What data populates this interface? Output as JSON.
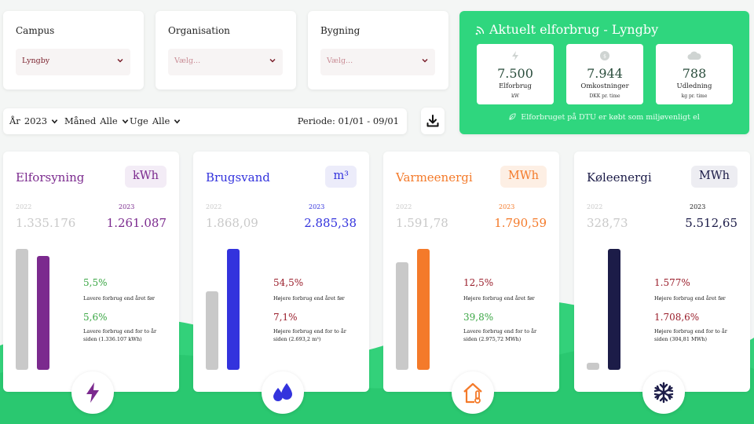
{
  "filters": [
    {
      "label": "Campus",
      "value": "Lyngby",
      "placeholder": ""
    },
    {
      "label": "Organisation",
      "value": "",
      "placeholder": "Vælg..."
    },
    {
      "label": "Bygning",
      "value": "",
      "placeholder": "Vælg..."
    }
  ],
  "period": {
    "year_label": "År",
    "year_value": "2023",
    "month_label": "Måned",
    "month_value": "Alle",
    "week_label": "Uge",
    "week_value": "Alle",
    "range_text": "Periode: 01/01 - 09/01"
  },
  "download": {
    "icon": "download-icon"
  },
  "live": {
    "title": "Aktuelt elforbrug - Lyngby",
    "icon": "wifi-signal-icon",
    "cards": [
      {
        "icon": "lightning-icon",
        "value": "7.500",
        "label": "Elforbrug",
        "unit": "kW"
      },
      {
        "icon": "coins-icon",
        "value": "7.944",
        "label": "Omkostninger",
        "unit": "DKK pr. time"
      },
      {
        "icon": "co2-cloud-icon",
        "value": "788",
        "label": "Udledning",
        "unit": "kg pr. time"
      }
    ],
    "note": "Elforbruget på DTU er købt som miljøvenligt el",
    "note_icon": "leaf-icon"
  },
  "energy": [
    {
      "title": "Elforsyning",
      "unit": "kWh",
      "accent": "#7b2a8e",
      "unit_bg": "#f3ecf6",
      "year_a": "2022",
      "value_a": "1.335.176",
      "year_b": "2023",
      "value_b": "1.261.087",
      "bar_a": 1335176,
      "bar_b": 1261087,
      "pct1": "5,5%",
      "desc1": "Lavere forbrug end året før",
      "pct2": "5,6%",
      "desc2": "Lavere forbrug end for to år siden (1.336.107 kWh)",
      "trend": "down",
      "icon": "lightning-icon"
    },
    {
      "title": "Brugsvand",
      "unit": "m³",
      "accent": "#3333dd",
      "unit_bg": "#ececfa",
      "year_a": "2022",
      "value_a": "1.868,09",
      "year_b": "2023",
      "value_b": "2.885,38",
      "bar_a": 1868.09,
      "bar_b": 2885.38,
      "pct1": "54,5%",
      "desc1": "Højere forbrug end året før",
      "pct2": "7,1%",
      "desc2": "Højere forbrug end for to år siden (2.693,2 m³)",
      "trend": "up",
      "icon": "water-drops-icon"
    },
    {
      "title": "Varmeenergi",
      "unit": "MWh",
      "accent": "#f47a2a",
      "unit_bg": "#fdefe4",
      "year_a": "2022",
      "value_a": "1.591,78",
      "year_b": "2023",
      "value_b": "1.790,59",
      "bar_a": 1591.78,
      "bar_b": 1790.59,
      "pct1": "12,5%",
      "desc1": "Højere forbrug end året før",
      "pct2": "39,8%",
      "desc2": "Lavere forbrug end for to år siden (2.975,72 MWh)",
      "trend": "up",
      "icon": "house-thermometer-icon"
    },
    {
      "title": "Køleenergi",
      "unit": "MWh",
      "accent": "#1c1c48",
      "unit_bg": "#ededf2",
      "year_a": "2022",
      "value_a": "328,73",
      "year_b": "2023",
      "value_b": "5.512,65",
      "bar_a": 328.73,
      "bar_b": 5512.65,
      "pct1": "1.577%",
      "desc1": "Højere forbrug end året før",
      "pct2": "1.708,6%",
      "desc2": "Højere forbrug end for to år siden (304,81 MWh)",
      "trend": "up",
      "icon": "snowflake-icon"
    }
  ]
}
